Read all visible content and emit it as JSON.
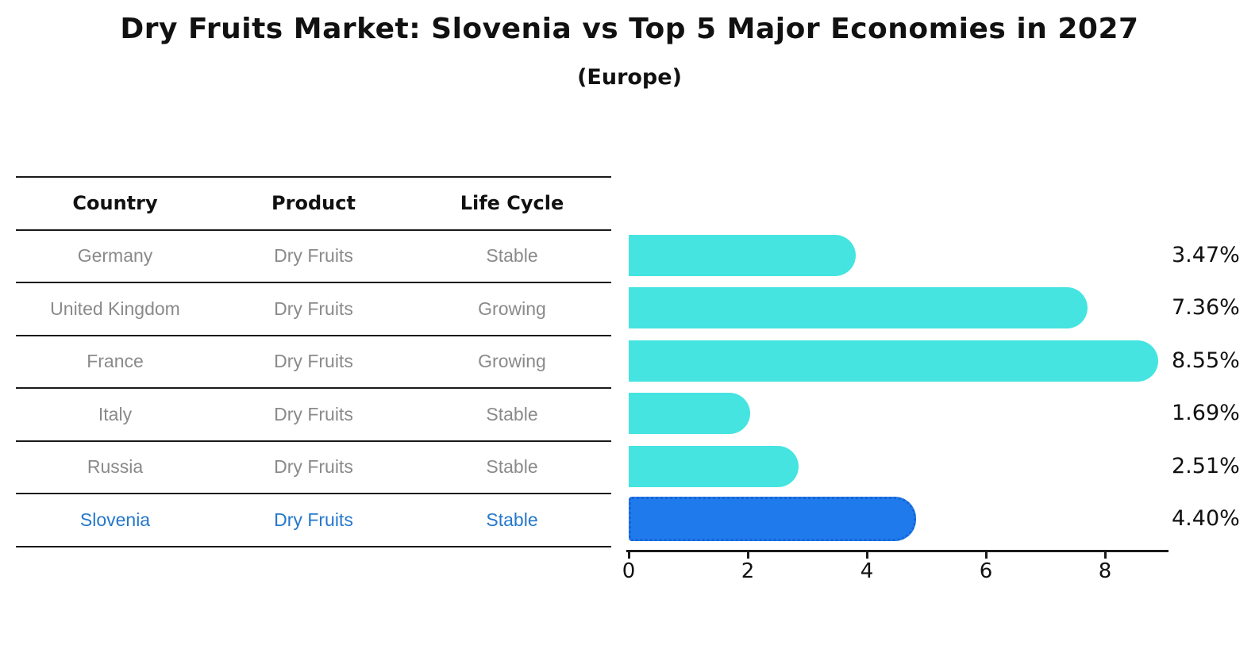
{
  "title": "Dry Fruits Market: Slovenia vs Top 5 Major Economies in 2027",
  "subtitle": "(Europe)",
  "table": {
    "headers": [
      "Country",
      "Product",
      "Life Cycle"
    ],
    "rows": [
      {
        "country": "Germany",
        "product": "Dry Fruits",
        "life_cycle": "Stable",
        "highlight": false
      },
      {
        "country": "United Kingdom",
        "product": "Dry Fruits",
        "life_cycle": "Growing",
        "highlight": false
      },
      {
        "country": "France",
        "product": "Dry Fruits",
        "life_cycle": "Growing",
        "highlight": false
      },
      {
        "country": "Italy",
        "product": "Dry Fruits",
        "life_cycle": "Stable",
        "highlight": false
      },
      {
        "country": "Russia",
        "product": "Dry Fruits",
        "life_cycle": "Stable",
        "highlight": false
      },
      {
        "country": "Slovenia",
        "product": "Dry Fruits",
        "life_cycle": "Stable",
        "highlight": true
      }
    ]
  },
  "chart_data": {
    "type": "bar",
    "orientation": "horizontal",
    "title": "Dry Fruits Market: Slovenia vs Top 5 Major Economies in 2027 (Europe)",
    "categories": [
      "Germany",
      "United Kingdom",
      "France",
      "Italy",
      "Russia",
      "Slovenia"
    ],
    "values": [
      3.47,
      7.36,
      8.55,
      1.69,
      2.51,
      4.4
    ],
    "value_labels": [
      "3.47%",
      "7.36%",
      "8.55%",
      "1.69%",
      "2.51%",
      "4.40%"
    ],
    "xlabel": "",
    "ylabel": "",
    "xlim": [
      0,
      9
    ],
    "xticks": [
      0,
      2,
      4,
      6,
      8
    ],
    "grid": false,
    "legend": false,
    "highlight_index": 5,
    "bar_style": "rounded-right-cap",
    "highlight_style": "dotted-border"
  },
  "colors": {
    "background": "#ffffff",
    "bar": "#45E4E0",
    "highlight_bar": "#1F7AEB",
    "highlight_border": "#1565D8",
    "highlight_text": "#2478CC",
    "row_text": "#8a8a8a",
    "header_text": "#111111",
    "line": "#1a1a1a",
    "label_text": "#111111"
  }
}
